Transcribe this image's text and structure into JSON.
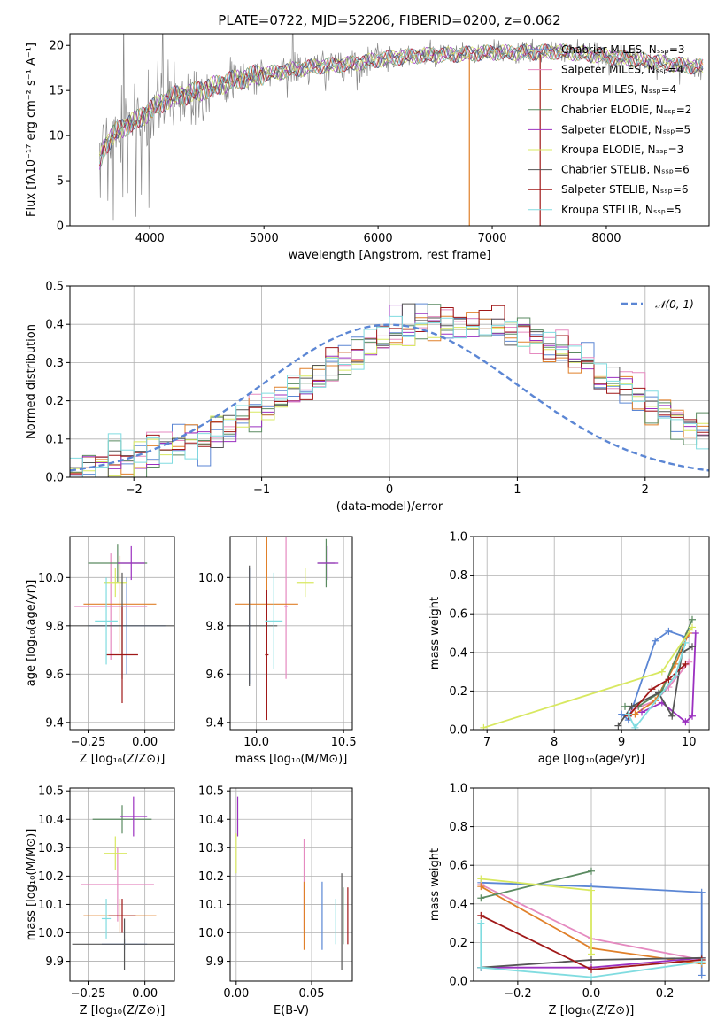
{
  "title": "PLATE=0722, MJD=52206, FIBERID=0200, z=0.062",
  "palette": {
    "Chabrier MILES": "#5b86d4",
    "Salpeter MILES": "#e58ac0",
    "Kroupa MILES": "#e0802a",
    "Chabrier ELODIE": "#5a8a60",
    "Salpeter ELODIE": "#9b30c0",
    "Kroupa ELODIE": "#d8e860",
    "Chabrier STELIB": "#555555",
    "Salpeter STELIB": "#a01818",
    "Kroupa STELIB": "#80dce0",
    "data": "#888888",
    "gauss": "#5b86d4"
  },
  "chart_data": [
    {
      "id": "spectrum",
      "type": "line",
      "title": "PLATE=0722, MJD=52206, FIBERID=0200, z=0.062",
      "xlabel": "wavelength [Angstrom, rest frame]",
      "ylabel": "Flux [fλ10⁻¹⁷ erg cm⁻² s⁻¹ A⁻¹]",
      "xlim": [
        3300,
        8900
      ],
      "ylim": [
        0,
        21.3
      ],
      "xticks": [
        "4000",
        "5000",
        "6000",
        "7000",
        "8000"
      ],
      "yticks": [
        "0",
        "5",
        "10",
        "15",
        "20"
      ],
      "grid": false,
      "legend_position": "top-right",
      "continuum_knots": {
        "x": [
          3560,
          3600,
          3700,
          3800,
          3900,
          4000,
          4100,
          4200,
          4350,
          4500,
          4700,
          4900,
          5100,
          5300,
          5500,
          5800,
          6100,
          6400,
          6700,
          7000,
          7300,
          7600,
          8000,
          8400,
          8800
        ],
        "y": [
          7.0,
          8.8,
          10.3,
          11.2,
          11.8,
          12.8,
          13.6,
          14.3,
          14.6,
          15.2,
          16.0,
          16.6,
          17.0,
          17.4,
          17.7,
          18.0,
          18.6,
          18.9,
          19.0,
          19.2,
          19.2,
          19.3,
          18.8,
          18.2,
          17.6
        ]
      },
      "series": [
        {
          "name": "Chabrier MILES, Nₛₛₚ=3"
        },
        {
          "name": "Salpeter MILES, Nₛₛₚ=4"
        },
        {
          "name": "Kroupa MILES, Nₛₛₚ=4"
        },
        {
          "name": "Chabrier ELODIE, Nₛₛₚ=2"
        },
        {
          "name": "Salpeter ELODIE, Nₛₛₚ=5"
        },
        {
          "name": "Kroupa ELODIE, Nₛₛₚ=3"
        },
        {
          "name": "Chabrier STELIB, Nₛₛₚ=6"
        },
        {
          "name": "Salpeter STELIB, Nₛₛₚ=6"
        },
        {
          "name": "Kroupa STELIB, Nₛₛₚ=5"
        }
      ]
    },
    {
      "id": "residuals",
      "type": "bar",
      "xlabel": "(data-model)/error",
      "ylabel": "Normed distribution",
      "xlim": [
        -2.5,
        2.5
      ],
      "ylim": [
        0,
        0.5
      ],
      "xticks": [
        "−2",
        "−1",
        "0",
        "1",
        "2"
      ],
      "yticks": [
        "0.0",
        "0.1",
        "0.2",
        "0.3",
        "0.4",
        "0.5"
      ],
      "grid": true,
      "legend_position": "top-right",
      "legend": "𝒩(0, 1)",
      "bin_width": 0.1,
      "bin_start": -2.5,
      "base_values": [
        0.02,
        0.03,
        0.035,
        0.04,
        0.05,
        0.06,
        0.065,
        0.08,
        0.09,
        0.1,
        0.11,
        0.12,
        0.135,
        0.15,
        0.17,
        0.185,
        0.21,
        0.23,
        0.25,
        0.275,
        0.29,
        0.31,
        0.33,
        0.34,
        0.36,
        0.37,
        0.38,
        0.39,
        0.4,
        0.4,
        0.395,
        0.4,
        0.4,
        0.39,
        0.38,
        0.37,
        0.36,
        0.34,
        0.33,
        0.31,
        0.29,
        0.275,
        0.25,
        0.23,
        0.21,
        0.19,
        0.17,
        0.15,
        0.135,
        0.12,
        0.11,
        0.1,
        0.09,
        0.08,
        0.065,
        0.055,
        0.045,
        0.04,
        0.035,
        0.03,
        0.025,
        0.02,
        0.02,
        0.02
      ]
    },
    {
      "id": "age-vs-Z",
      "type": "scatter",
      "xlabel": "Z [log₁₀(Z/Z⊙)]",
      "ylabel": "age  [log₁₀(age/yr)]",
      "xlim": [
        -0.33,
        0.13
      ],
      "ylim": [
        9.37,
        10.17
      ],
      "xticks": [
        "−0.25",
        "0.00"
      ],
      "xtick_values": [
        -0.25,
        0.0
      ],
      "yticks": [
        "9.4",
        "9.6",
        "9.8",
        "10.0"
      ],
      "ytick_values": [
        9.4,
        9.6,
        9.8,
        10.0
      ],
      "grid": true,
      "points": [
        {
          "x": -0.08,
          "xe": 0.17,
          "y": 9.8,
          "ye": 0.2
        },
        {
          "x": -0.15,
          "xe": 0.16,
          "y": 9.88,
          "ye": 0.22
        },
        {
          "x": -0.11,
          "xe": 0.16,
          "y": 9.89,
          "ye": 0.2
        },
        {
          "x": -0.12,
          "xe": 0.13,
          "y": 10.06,
          "ye": 0.08
        },
        {
          "x": -0.06,
          "xe": 0.06,
          "y": 10.06,
          "ye": 0.07
        },
        {
          "x": -0.13,
          "xe": 0.05,
          "y": 9.98,
          "ye": 0.06
        },
        {
          "x": -0.1,
          "xe": 0.23,
          "y": 9.8,
          "ye": 0.22
        },
        {
          "x": -0.1,
          "xe": 0.07,
          "y": 9.68,
          "ye": 0.2
        },
        {
          "x": -0.17,
          "xe": 0.05,
          "y": 9.82,
          "ye": 0.18
        }
      ]
    },
    {
      "id": "age-vs-mass",
      "type": "scatter",
      "xlabel": "mass [log₁₀(M/M⊙)]",
      "xlim": [
        9.85,
        10.55
      ],
      "ylim": [
        9.37,
        10.17
      ],
      "xticks": [
        "10.0",
        "10.5"
      ],
      "xtick_values": [
        10.0,
        10.5
      ],
      "yticks": [
        "9.4",
        "9.6",
        "9.8",
        "10.0"
      ],
      "ytick_values": [
        9.4,
        9.6,
        9.8,
        10.0
      ],
      "grid": true,
      "points": [
        {
          "x": 9.96,
          "xe": 0.01,
          "y": 9.8,
          "ye": 0.24
        },
        {
          "x": 10.17,
          "xe": 0.01,
          "y": 9.88,
          "ye": 0.3
        },
        {
          "x": 10.06,
          "xe": 0.18,
          "y": 9.89,
          "ye": 0.3
        },
        {
          "x": 10.4,
          "xe": 0.05,
          "y": 10.06,
          "ye": 0.1
        },
        {
          "x": 10.41,
          "xe": 0.06,
          "y": 10.06,
          "ye": 0.07
        },
        {
          "x": 10.28,
          "xe": 0.05,
          "y": 9.98,
          "ye": 0.06
        },
        {
          "x": 9.96,
          "xe": 0.16,
          "y": 9.8,
          "ye": 0.25
        },
        {
          "x": 10.06,
          "xe": 0.01,
          "y": 9.68,
          "ye": 0.27
        },
        {
          "x": 10.1,
          "xe": 0.05,
          "y": 9.82,
          "ye": 0.2
        }
      ]
    },
    {
      "id": "weight-vs-age",
      "type": "line",
      "xlabel": "age  [log₁₀(age/yr)]",
      "ylabel": "mass weight",
      "xlim": [
        6.8,
        10.3
      ],
      "ylim": [
        0,
        1
      ],
      "xticks": [
        "7",
        "8",
        "9",
        "10"
      ],
      "xtick_values": [
        7,
        8,
        9,
        10
      ],
      "yticks": [
        "0.0",
        "0.2",
        "0.4",
        "0.6",
        "0.8",
        "1.0"
      ],
      "ytick_values": [
        0,
        0.2,
        0.4,
        0.6,
        0.8,
        1.0
      ],
      "grid": true,
      "series": [
        {
          "x": [
            9.0,
            9.1,
            9.5,
            9.7,
            9.95
          ],
          "y": [
            0.08,
            0.05,
            0.46,
            0.51,
            0.48
          ]
        },
        {
          "x": [
            9.15,
            9.5,
            9.7,
            10.0
          ],
          "y": [
            0.1,
            0.15,
            0.22,
            0.35
          ]
        },
        {
          "x": [
            9.2,
            9.5,
            9.8,
            10.0
          ],
          "y": [
            0.08,
            0.15,
            0.34,
            0.5
          ]
        },
        {
          "x": [
            9.05,
            9.25,
            9.6,
            10.05
          ],
          "y": [
            0.12,
            0.12,
            0.2,
            0.57
          ]
        },
        {
          "x": [
            9.3,
            9.6,
            9.95,
            10.05,
            10.1
          ],
          "y": [
            0.09,
            0.14,
            0.04,
            0.07,
            0.5
          ]
        },
        {
          "x": [
            6.95,
            9.6,
            10.05
          ],
          "y": [
            0.01,
            0.3,
            0.53
          ]
        },
        {
          "x": [
            8.95,
            9.15,
            9.55,
            9.75,
            9.9,
            10.05
          ],
          "y": [
            0.02,
            0.12,
            0.19,
            0.07,
            0.4,
            0.43
          ]
        },
        {
          "x": [
            9.1,
            9.45,
            9.7,
            9.95
          ],
          "y": [
            0.07,
            0.21,
            0.26,
            0.34
          ]
        },
        {
          "x": [
            9.1,
            9.2,
            9.8,
            9.95
          ],
          "y": [
            0.08,
            0.01,
            0.28,
            0.45
          ]
        }
      ]
    },
    {
      "id": "mass-vs-Z",
      "type": "scatter",
      "xlabel": "Z [log₁₀(Z/Z⊙)]",
      "ylabel": "mass [log₁₀(M/M⊙)]",
      "xlim": [
        -0.33,
        0.13
      ],
      "ylim": [
        9.83,
        10.51
      ],
      "xticks": [
        "−0.25",
        "0.00"
      ],
      "xtick_values": [
        -0.25,
        0.0
      ],
      "yticks": [
        "9.9",
        "10.0",
        "10.1",
        "10.2",
        "10.3",
        "10.4",
        "10.5"
      ],
      "ytick_values": [
        9.9,
        10.0,
        10.1,
        10.2,
        10.3,
        10.4,
        10.5
      ],
      "grid": true,
      "points": [
        {
          "x": -0.09,
          "xe": 0.1,
          "y": 9.96,
          "ye": 0.02
        },
        {
          "x": -0.12,
          "xe": 0.16,
          "y": 10.17,
          "ye": 0.13
        },
        {
          "x": -0.11,
          "xe": 0.16,
          "y": 10.06,
          "ye": 0.06
        },
        {
          "x": -0.1,
          "xe": 0.13,
          "y": 10.4,
          "ye": 0.05
        },
        {
          "x": -0.05,
          "xe": 0.06,
          "y": 10.41,
          "ye": 0.07
        },
        {
          "x": -0.13,
          "xe": 0.05,
          "y": 10.28,
          "ye": 0.06
        },
        {
          "x": -0.09,
          "xe": 0.23,
          "y": 9.96,
          "ye": 0.09
        },
        {
          "x": -0.1,
          "xe": 0.06,
          "y": 10.06,
          "ye": 0.06
        },
        {
          "x": -0.17,
          "xe": 0.02,
          "y": 10.05,
          "ye": 0.07
        }
      ]
    },
    {
      "id": "mass-vs-EBV",
      "type": "scatter",
      "xlabel": "E(B-V)",
      "xlim": [
        -0.004,
        0.077
      ],
      "ylim": [
        9.83,
        10.51
      ],
      "xticks": [
        "0.00",
        "0.05"
      ],
      "xtick_values": [
        0.0,
        0.05
      ],
      "yticks": [
        "9.9",
        "10.0",
        "10.1",
        "10.2",
        "10.3",
        "10.4",
        "10.5"
      ],
      "ytick_values": [
        9.9,
        10.0,
        10.1,
        10.2,
        10.3,
        10.4,
        10.5
      ],
      "grid": true,
      "points": [
        {
          "x": 0.057,
          "xe": 0,
          "y": 10.06,
          "ye": 0.12
        },
        {
          "x": 0.045,
          "xe": 0,
          "y": 10.17,
          "ye": 0.16
        },
        {
          "x": 0.045,
          "xe": 0,
          "y": 10.06,
          "ye": 0.12
        },
        {
          "x": 0.071,
          "xe": 0,
          "y": 10.06,
          "ye": 0.1
        },
        {
          "x": 0.001,
          "xe": 0,
          "y": 10.41,
          "ye": 0.07
        },
        {
          "x": 0.0,
          "xe": 0,
          "y": 10.28,
          "ye": 0.07
        },
        {
          "x": 0.07,
          "xe": 0,
          "y": 10.04,
          "ye": 0.17
        },
        {
          "x": 0.074,
          "xe": 0,
          "y": 10.06,
          "ye": 0.1
        },
        {
          "x": 0.066,
          "xe": 0,
          "y": 10.04,
          "ye": 0.08
        }
      ]
    },
    {
      "id": "weight-vs-Z",
      "type": "line",
      "xlabel": "Z [log₁₀(Z/Z⊙)]",
      "ylabel": "mass weight",
      "xlim": [
        -0.32,
        0.32
      ],
      "ylim": [
        0,
        1
      ],
      "xticks": [
        "−0.2",
        "0.0",
        "0.2"
      ],
      "xtick_values": [
        -0.2,
        0.0,
        0.2
      ],
      "yticks": [
        "0.0",
        "0.2",
        "0.4",
        "0.6",
        "0.8",
        "1.0"
      ],
      "ytick_values": [
        0,
        0.2,
        0.4,
        0.6,
        0.8,
        1.0
      ],
      "grid": true,
      "series": [
        {
          "x": [
            -0.3,
            0.0,
            0.3,
            0.3
          ],
          "y": [
            0.51,
            0.49,
            0.46,
            0.03
          ]
        },
        {
          "x": [
            -0.3,
            0.0,
            0.3
          ],
          "y": [
            0.5,
            0.22,
            0.11
          ]
        },
        {
          "x": [
            -0.3,
            0.0,
            0.3
          ],
          "y": [
            0.49,
            0.17,
            0.09
          ]
        },
        {
          "x": [
            -0.3,
            0.0
          ],
          "y": [
            0.43,
            0.57
          ]
        },
        {
          "x": [
            -0.3,
            0.0,
            0.3
          ],
          "y": [
            0.07,
            0.07,
            0.12
          ]
        },
        {
          "x": [
            -0.3,
            0.0,
            0.0
          ],
          "y": [
            0.53,
            0.47,
            0.14
          ]
        },
        {
          "x": [
            -0.3,
            0.0,
            0.3
          ],
          "y": [
            0.07,
            0.11,
            0.12
          ]
        },
        {
          "x": [
            -0.3,
            0.0,
            0.3
          ],
          "y": [
            0.34,
            0.06,
            0.11
          ]
        },
        {
          "x": [
            -0.3,
            -0.3,
            0.0,
            0.3
          ],
          "y": [
            0.3,
            0.07,
            0.02,
            0.1
          ]
        }
      ]
    }
  ]
}
